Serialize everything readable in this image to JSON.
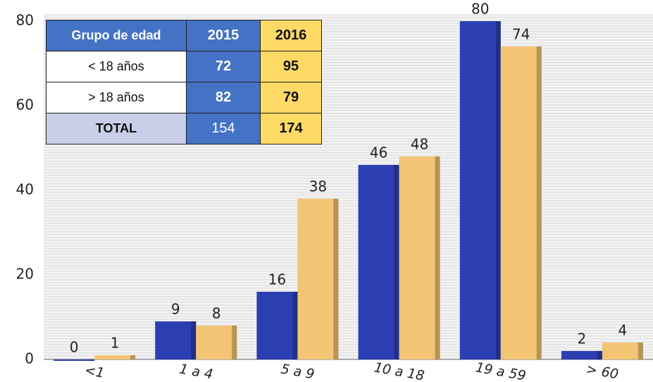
{
  "chart_data": {
    "type": "bar",
    "categories": [
      "<1",
      "1 a 4",
      "5 a 9",
      "10 a 18",
      "19 a 59",
      "> 60"
    ],
    "series": [
      {
        "color": "#2c3fb2",
        "values": [
          0,
          9,
          16,
          46,
          80,
          2
        ]
      },
      {
        "color": "#f2c474",
        "values": [
          1,
          8,
          38,
          48,
          74,
          4
        ]
      }
    ],
    "ylim": [
      0,
      80
    ],
    "yticks": [
      0,
      20,
      40,
      60,
      80
    ],
    "grid": false
  },
  "table": {
    "header": [
      "Grupo de edad",
      2015,
      2016
    ],
    "rows": [
      [
        "< 18 años",
        72,
        95
      ],
      [
        "> 18 años",
        82,
        79
      ],
      [
        "TOTAL",
        154,
        174
      ]
    ]
  }
}
